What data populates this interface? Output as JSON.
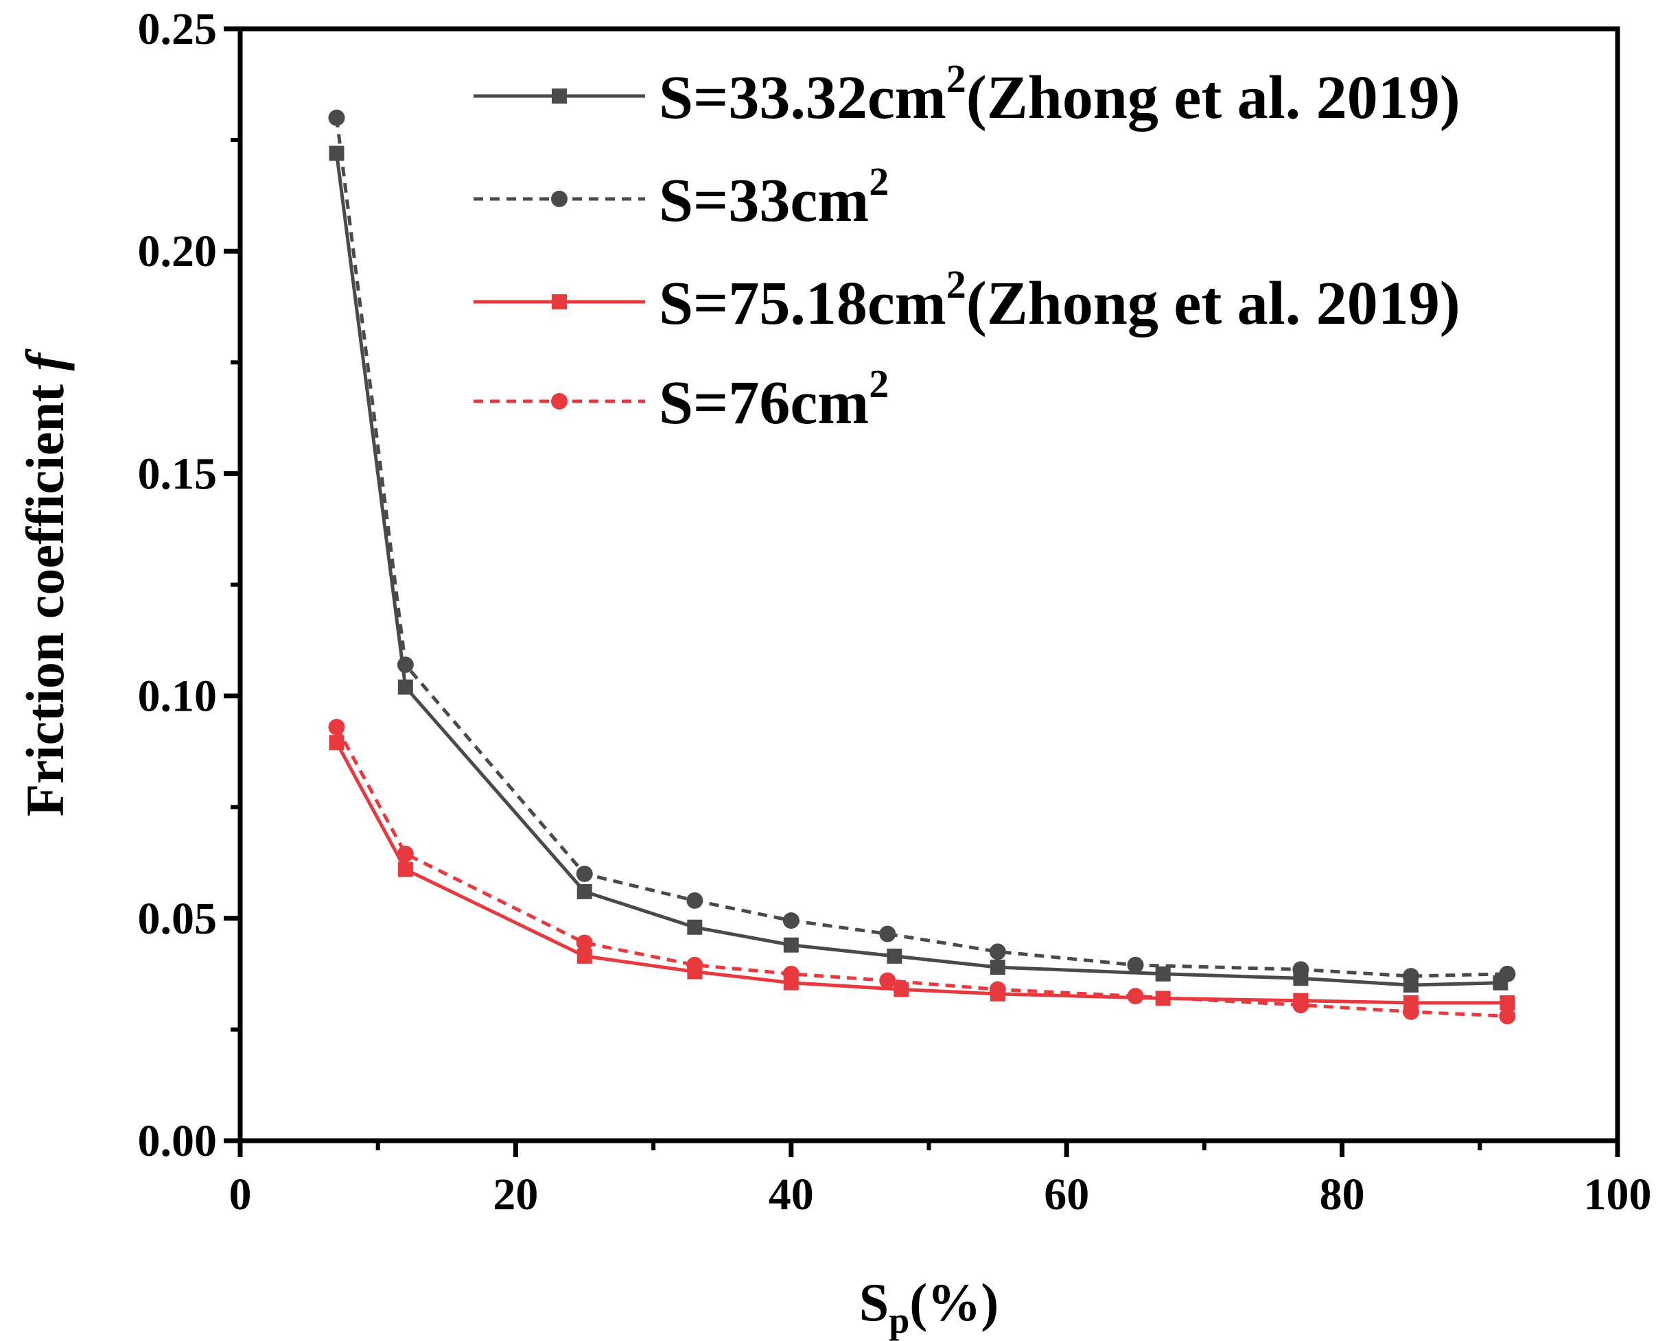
{
  "chart_data": {
    "type": "line",
    "title": "",
    "xlabel": {
      "main": "S",
      "sub": "p",
      "suffix": "(%)"
    },
    "ylabel": {
      "main": "Friction coefficient ",
      "italic": "f"
    },
    "xlim": [
      0,
      100
    ],
    "ylim": [
      0,
      0.25
    ],
    "xticks": [
      0,
      20,
      40,
      60,
      80,
      100
    ],
    "xtick_labels": [
      "0",
      "20",
      "40",
      "60",
      "80",
      "100"
    ],
    "yticks": [
      0,
      0.05,
      0.1,
      0.15,
      0.2,
      0.25
    ],
    "ytick_labels": [
      "0.00",
      "0.05",
      "0.10",
      "0.15",
      "0.20",
      "0.25"
    ],
    "legend_position": "top-right",
    "series": [
      {
        "name": "S=33.32cm2(Zhong et al. 2019)",
        "legend": {
          "pre": "S=33.32cm",
          "sup": "2",
          "post": "(Zhong et al. 2019)"
        },
        "color": "#4a4a4a",
        "line": "solid",
        "marker": "square",
        "x": [
          7,
          12,
          25,
          33,
          40,
          47.5,
          55,
          67,
          77,
          85,
          91.5
        ],
        "y": [
          0.222,
          0.102,
          0.056,
          0.048,
          0.044,
          0.0415,
          0.039,
          0.0375,
          0.0365,
          0.035,
          0.0355
        ]
      },
      {
        "name": "S=33cm2",
        "legend": {
          "pre": "S=33cm",
          "sup": "2",
          "post": ""
        },
        "color": "#4a4a4a",
        "line": "dashed",
        "marker": "circle",
        "x": [
          7,
          12,
          25,
          33,
          40,
          47,
          55,
          65,
          77,
          85,
          92
        ],
        "y": [
          0.23,
          0.107,
          0.06,
          0.054,
          0.0495,
          0.0465,
          0.0425,
          0.0395,
          0.0385,
          0.037,
          0.0375
        ]
      },
      {
        "name": "S=75.18cm2(Zhong et al. 2019)",
        "legend": {
          "pre": "S=75.18cm",
          "sup": "2",
          "post": "(Zhong et al. 2019)"
        },
        "color": "#e8393f",
        "line": "solid",
        "marker": "square",
        "x": [
          7,
          12,
          25,
          33,
          40,
          48,
          55,
          67,
          77,
          85,
          92
        ],
        "y": [
          0.0895,
          0.061,
          0.0415,
          0.038,
          0.0355,
          0.034,
          0.033,
          0.032,
          0.0315,
          0.031,
          0.031
        ]
      },
      {
        "name": "S=76cm2",
        "legend": {
          "pre": "S=76cm",
          "sup": "2",
          "post": ""
        },
        "color": "#e8393f",
        "line": "dashed",
        "marker": "circle",
        "x": [
          7,
          12,
          25,
          33,
          40,
          47,
          55,
          65,
          77,
          85,
          92
        ],
        "y": [
          0.093,
          0.0645,
          0.0445,
          0.0395,
          0.0375,
          0.036,
          0.034,
          0.0325,
          0.0305,
          0.029,
          0.028
        ]
      }
    ]
  }
}
